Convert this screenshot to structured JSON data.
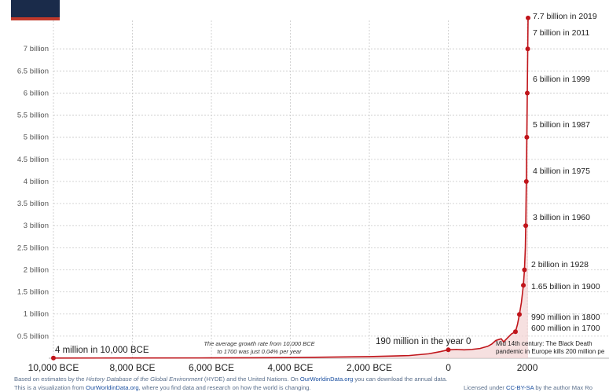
{
  "chart_data": {
    "type": "line",
    "y_ticks": [
      {
        "value": 0.5,
        "label": "0.5 billion"
      },
      {
        "value": 1,
        "label": "1 billion"
      },
      {
        "value": 1.5,
        "label": "1.5 billion"
      },
      {
        "value": 2,
        "label": "2 billion"
      },
      {
        "value": 2.5,
        "label": "2.5 billion"
      },
      {
        "value": 3,
        "label": "3 billion"
      },
      {
        "value": 3.5,
        "label": "3.5 billion"
      },
      {
        "value": 4,
        "label": "4 billion"
      },
      {
        "value": 4.5,
        "label": "4.5 billion"
      },
      {
        "value": 5,
        "label": "5 billion"
      },
      {
        "value": 5.5,
        "label": "5.5 billion"
      },
      {
        "value": 6,
        "label": "6 billion"
      },
      {
        "value": 6.5,
        "label": "6.5 billion"
      },
      {
        "value": 7,
        "label": "7 billion"
      }
    ],
    "x_ticks": [
      {
        "value": -10000,
        "label": "10,000 BCE"
      },
      {
        "value": -8000,
        "label": "8,000 BCE"
      },
      {
        "value": -6000,
        "label": "6,000 BCE"
      },
      {
        "value": -4000,
        "label": "4,000 BCE"
      },
      {
        "value": -2000,
        "label": "2,000 BCE"
      },
      {
        "value": 0,
        "label": "0"
      },
      {
        "value": 2000,
        "label": "2000"
      }
    ],
    "xlim": [
      -11000,
      2100
    ],
    "ylim": [
      0,
      7.75
    ],
    "series": [
      {
        "values": [
          {
            "x": -10000,
            "y": 0.004
          },
          {
            "x": -8000,
            "y": 0.005
          },
          {
            "x": -6000,
            "y": 0.007
          },
          {
            "x": -5000,
            "y": 0.01
          },
          {
            "x": -4000,
            "y": 0.014
          },
          {
            "x": -3000,
            "y": 0.025
          },
          {
            "x": -2000,
            "y": 0.037
          },
          {
            "x": -1000,
            "y": 0.06
          },
          {
            "x": -500,
            "y": 0.1
          },
          {
            "x": -200,
            "y": 0.15
          },
          {
            "x": 0,
            "y": 0.19
          },
          {
            "x": 200,
            "y": 0.2
          },
          {
            "x": 400,
            "y": 0.19
          },
          {
            "x": 600,
            "y": 0.2
          },
          {
            "x": 800,
            "y": 0.22
          },
          {
            "x": 1000,
            "y": 0.27
          },
          {
            "x": 1100,
            "y": 0.32
          },
          {
            "x": 1200,
            "y": 0.4
          },
          {
            "x": 1300,
            "y": 0.43
          },
          {
            "x": 1340,
            "y": 0.44
          },
          {
            "x": 1400,
            "y": 0.37
          },
          {
            "x": 1500,
            "y": 0.46
          },
          {
            "x": 1600,
            "y": 0.55
          },
          {
            "x": 1700,
            "y": 0.6
          },
          {
            "x": 1750,
            "y": 0.76
          },
          {
            "x": 1800,
            "y": 0.99
          },
          {
            "x": 1850,
            "y": 1.26
          },
          {
            "x": 1900,
            "y": 1.65
          },
          {
            "x": 1928,
            "y": 2
          },
          {
            "x": 1950,
            "y": 2.5
          },
          {
            "x": 1960,
            "y": 3
          },
          {
            "x": 1975,
            "y": 4
          },
          {
            "x": 1987,
            "y": 5
          },
          {
            "x": 1999,
            "y": 6
          },
          {
            "x": 2011,
            "y": 7
          },
          {
            "x": 2019,
            "y": 7.7
          }
        ]
      }
    ],
    "markers": [
      {
        "x": -10000,
        "y": 0.004
      },
      {
        "x": 0,
        "y": 0.19
      },
      {
        "x": 1700,
        "y": 0.6
      },
      {
        "x": 1800,
        "y": 0.99
      },
      {
        "x": 1900,
        "y": 1.65
      },
      {
        "x": 1928,
        "y": 2
      },
      {
        "x": 1960,
        "y": 3
      },
      {
        "x": 1975,
        "y": 4
      },
      {
        "x": 1987,
        "y": 5
      },
      {
        "x": 1999,
        "y": 6
      },
      {
        "x": 2011,
        "y": 7
      },
      {
        "x": 2019,
        "y": 7.7
      }
    ],
    "annotations": [
      {
        "text": "7.7 billion in 2019"
      },
      {
        "text": "7 billion in 2011"
      },
      {
        "text": "6 billion in 1999"
      },
      {
        "text": "5 billion in 1987"
      },
      {
        "text": "4 billion in 1975"
      },
      {
        "text": "3 billion in 1960"
      },
      {
        "text": "2 billion in 1928"
      },
      {
        "text": "1.65 billion in 1900"
      },
      {
        "text": "990 million in 1800"
      },
      {
        "text": "600 million in 1700"
      },
      {
        "text": "190 million in the year 0"
      },
      {
        "text": "4 million in 10,000 BCE"
      }
    ],
    "notes": {
      "growth_line1": "The average growth rate from 10,000 BCE",
      "growth_line2": "to 1700 was just  0.04% per year",
      "black_death_line1": "Mid 14th century: The Black Death",
      "black_death_line2": "pandemic in Europe kills 200 million pe"
    },
    "colors": {
      "line": "#c0151b",
      "fill": "#f2d3d3",
      "grid": "#c8c8c8"
    },
    "grid": true
  },
  "footer": {
    "line1_a": "Based on estimates by the ",
    "line1_b": "History Database of the Global Environment",
    "line1_c": " (HYDE) and the United Nations. On ",
    "line1_link": "OurWorldinData.org",
    "line1_d": " you can download the annual data.",
    "line2_a": "This is a visualization from ",
    "line2_link": "OurWorldinData.org",
    "line2_b": ", where you find data and research on how the world is changing.",
    "license_a": "Licensed under ",
    "license_link": "CC-BY-SA",
    "license_b": " by the author Max Ro"
  }
}
